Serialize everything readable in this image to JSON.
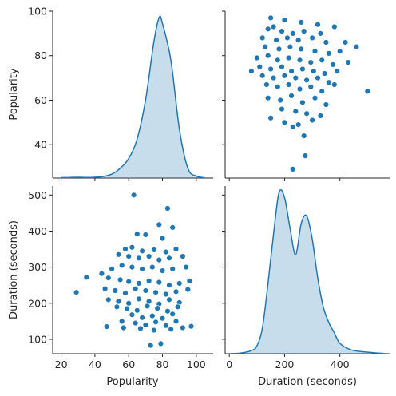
{
  "chart_data": {
    "type": "pairplot",
    "variables": [
      "Popularity",
      "Duration (seconds)"
    ],
    "colors": {
      "marker": "#1f77b4",
      "kde_fill": "#1f77b4",
      "axis": "#262626"
    },
    "panels": [
      {
        "id": "popularity-kde",
        "type": "area",
        "row": 0,
        "col": 0,
        "ylabel": "Popularity",
        "ylim": [
          25,
          100
        ],
        "yticks": [
          40,
          60,
          80,
          100
        ],
        "xlim": [
          15,
          110
        ],
        "series": [
          {
            "x": [
              20,
              25,
              30,
              35,
              40,
              45,
              50,
              55,
              60,
              65,
              70,
              75,
              78,
              80,
              85,
              90,
              95,
              100,
              105
            ],
            "density": [
              0.002,
              0.003,
              0.004,
              0.003,
              0.004,
              0.008,
              0.02,
              0.05,
              0.1,
              0.2,
              0.4,
              0.7,
              0.82,
              0.79,
              0.6,
              0.25,
              0.05,
              0.01,
              0.002
            ]
          }
        ]
      },
      {
        "id": "popularity-vs-duration",
        "type": "scatter",
        "row": 0,
        "col": 1,
        "xlim": [
          -15,
          580
        ],
        "ylim": [
          25,
          100
        ],
        "points": [
          [
            150,
            97
          ],
          [
            160,
            93
          ],
          [
            200,
            96
          ],
          [
            260,
            95
          ],
          [
            320,
            94
          ],
          [
            380,
            93
          ],
          [
            140,
            92
          ],
          [
            190,
            91
          ],
          [
            230,
            90
          ],
          [
            270,
            91
          ],
          [
            330,
            90
          ],
          [
            120,
            88
          ],
          [
            170,
            87
          ],
          [
            210,
            88
          ],
          [
            250,
            87
          ],
          [
            300,
            88
          ],
          [
            350,
            86
          ],
          [
            420,
            86
          ],
          [
            460,
            84
          ],
          [
            130,
            84
          ],
          [
            180,
            83
          ],
          [
            220,
            84
          ],
          [
            260,
            83
          ],
          [
            310,
            82
          ],
          [
            360,
            81
          ],
          [
            400,
            82
          ],
          [
            100,
            79
          ],
          [
            140,
            80
          ],
          [
            175,
            78
          ],
          [
            215,
            79
          ],
          [
            255,
            78
          ],
          [
            295,
            77
          ],
          [
            335,
            78
          ],
          [
            375,
            76
          ],
          [
            430,
            77
          ],
          [
            110,
            75
          ],
          [
            150,
            74
          ],
          [
            190,
            75
          ],
          [
            225,
            73
          ],
          [
            265,
            74
          ],
          [
            305,
            73
          ],
          [
            345,
            72
          ],
          [
            390,
            73
          ],
          [
            80,
            73
          ],
          [
            120,
            71
          ],
          [
            160,
            70
          ],
          [
            200,
            71
          ],
          [
            240,
            70
          ],
          [
            280,
            69
          ],
          [
            320,
            70
          ],
          [
            360,
            68
          ],
          [
            135,
            67
          ],
          [
            175,
            66
          ],
          [
            215,
            67
          ],
          [
            255,
            65
          ],
          [
            295,
            66
          ],
          [
            335,
            64
          ],
          [
            380,
            67
          ],
          [
            500,
            64
          ],
          [
            140,
            61
          ],
          [
            185,
            60
          ],
          [
            225,
            62
          ],
          [
            265,
            59
          ],
          [
            310,
            61
          ],
          [
            350,
            58
          ],
          [
            190,
            56
          ],
          [
            240,
            55
          ],
          [
            280,
            54
          ],
          [
            330,
            53
          ],
          [
            150,
            52
          ],
          [
            200,
            50
          ],
          [
            250,
            49
          ],
          [
            300,
            51
          ],
          [
            230,
            48
          ],
          [
            270,
            44
          ],
          [
            275,
            35
          ],
          [
            230,
            29
          ]
        ]
      },
      {
        "id": "duration-vs-popularity",
        "type": "scatter",
        "row": 1,
        "col": 0,
        "xlabel": "Popularity",
        "ylabel": "Duration (seconds)",
        "xlim": [
          15,
          110
        ],
        "ylim": [
          60,
          525
        ],
        "xticks": [
          20,
          40,
          60,
          80,
          100
        ],
        "yticks": [
          100,
          200,
          300,
          400,
          500
        ],
        "points": [
          [
            63,
            500
          ],
          [
            83,
            463
          ],
          [
            78,
            418
          ],
          [
            86,
            410
          ],
          [
            65,
            392
          ],
          [
            70,
            390
          ],
          [
            80,
            380
          ],
          [
            58,
            350
          ],
          [
            62,
            355
          ],
          [
            68,
            345
          ],
          [
            75,
            348
          ],
          [
            82,
            342
          ],
          [
            88,
            350
          ],
          [
            54,
            335
          ],
          [
            60,
            330
          ],
          [
            66,
            325
          ],
          [
            72,
            330
          ],
          [
            78,
            320
          ],
          [
            84,
            325
          ],
          [
            92,
            330
          ],
          [
            44,
            282
          ],
          [
            50,
            295
          ],
          [
            56,
            305
          ],
          [
            62,
            300
          ],
          [
            68,
            295
          ],
          [
            74,
            300
          ],
          [
            80,
            290
          ],
          [
            86,
            295
          ],
          [
            94,
            300
          ],
          [
            35,
            272
          ],
          [
            48,
            270
          ],
          [
            55,
            265
          ],
          [
            60,
            260
          ],
          [
            66,
            255
          ],
          [
            72,
            262
          ],
          [
            78,
            258
          ],
          [
            84,
            250
          ],
          [
            90,
            255
          ],
          [
            96,
            262
          ],
          [
            29,
            230
          ],
          [
            46,
            240
          ],
          [
            52,
            235
          ],
          [
            58,
            228
          ],
          [
            64,
            240
          ],
          [
            70,
            235
          ],
          [
            76,
            230
          ],
          [
            82,
            225
          ],
          [
            88,
            232
          ],
          [
            95,
            238
          ],
          [
            48,
            210
          ],
          [
            54,
            205
          ],
          [
            60,
            200
          ],
          [
            66,
            212
          ],
          [
            72,
            205
          ],
          [
            78,
            198
          ],
          [
            84,
            210
          ],
          [
            90,
            202
          ],
          [
            53,
            190
          ],
          [
            59,
            185
          ],
          [
            65,
            180
          ],
          [
            71,
            192
          ],
          [
            77,
            186
          ],
          [
            83,
            178
          ],
          [
            89,
            190
          ],
          [
            62,
            168
          ],
          [
            68,
            160
          ],
          [
            74,
            165
          ],
          [
            80,
            158
          ],
          [
            86,
            170
          ],
          [
            56,
            150
          ],
          [
            64,
            145
          ],
          [
            70,
            140
          ],
          [
            76,
            148
          ],
          [
            82,
            138
          ],
          [
            88,
            150
          ],
          [
            47,
            135
          ],
          [
            57,
            132
          ],
          [
            67,
            130
          ],
          [
            75,
            125
          ],
          [
            85,
            128
          ],
          [
            92,
            132
          ],
          [
            97,
            136
          ],
          [
            73,
            83
          ],
          [
            79,
            88
          ]
        ]
      },
      {
        "id": "duration-kde",
        "type": "area",
        "row": 1,
        "col": 1,
        "xlabel": "Duration (seconds)",
        "xlim": [
          -15,
          580
        ],
        "xticks": [
          0,
          200,
          400
        ],
        "series": [
          {
            "x": [
              0,
              40,
              80,
              100,
              120,
              140,
              160,
              180,
              200,
              220,
              240,
              260,
              280,
              300,
              320,
              340,
              360,
              380,
              400,
              440,
              480,
              520,
              560
            ],
            "density": [
              0.0,
              0.002,
              0.012,
              0.03,
              0.1,
              0.27,
              0.46,
              0.62,
              0.6,
              0.48,
              0.38,
              0.5,
              0.53,
              0.44,
              0.29,
              0.18,
              0.12,
              0.08,
              0.04,
              0.015,
              0.008,
              0.004,
              0.001
            ]
          }
        ]
      }
    ]
  }
}
